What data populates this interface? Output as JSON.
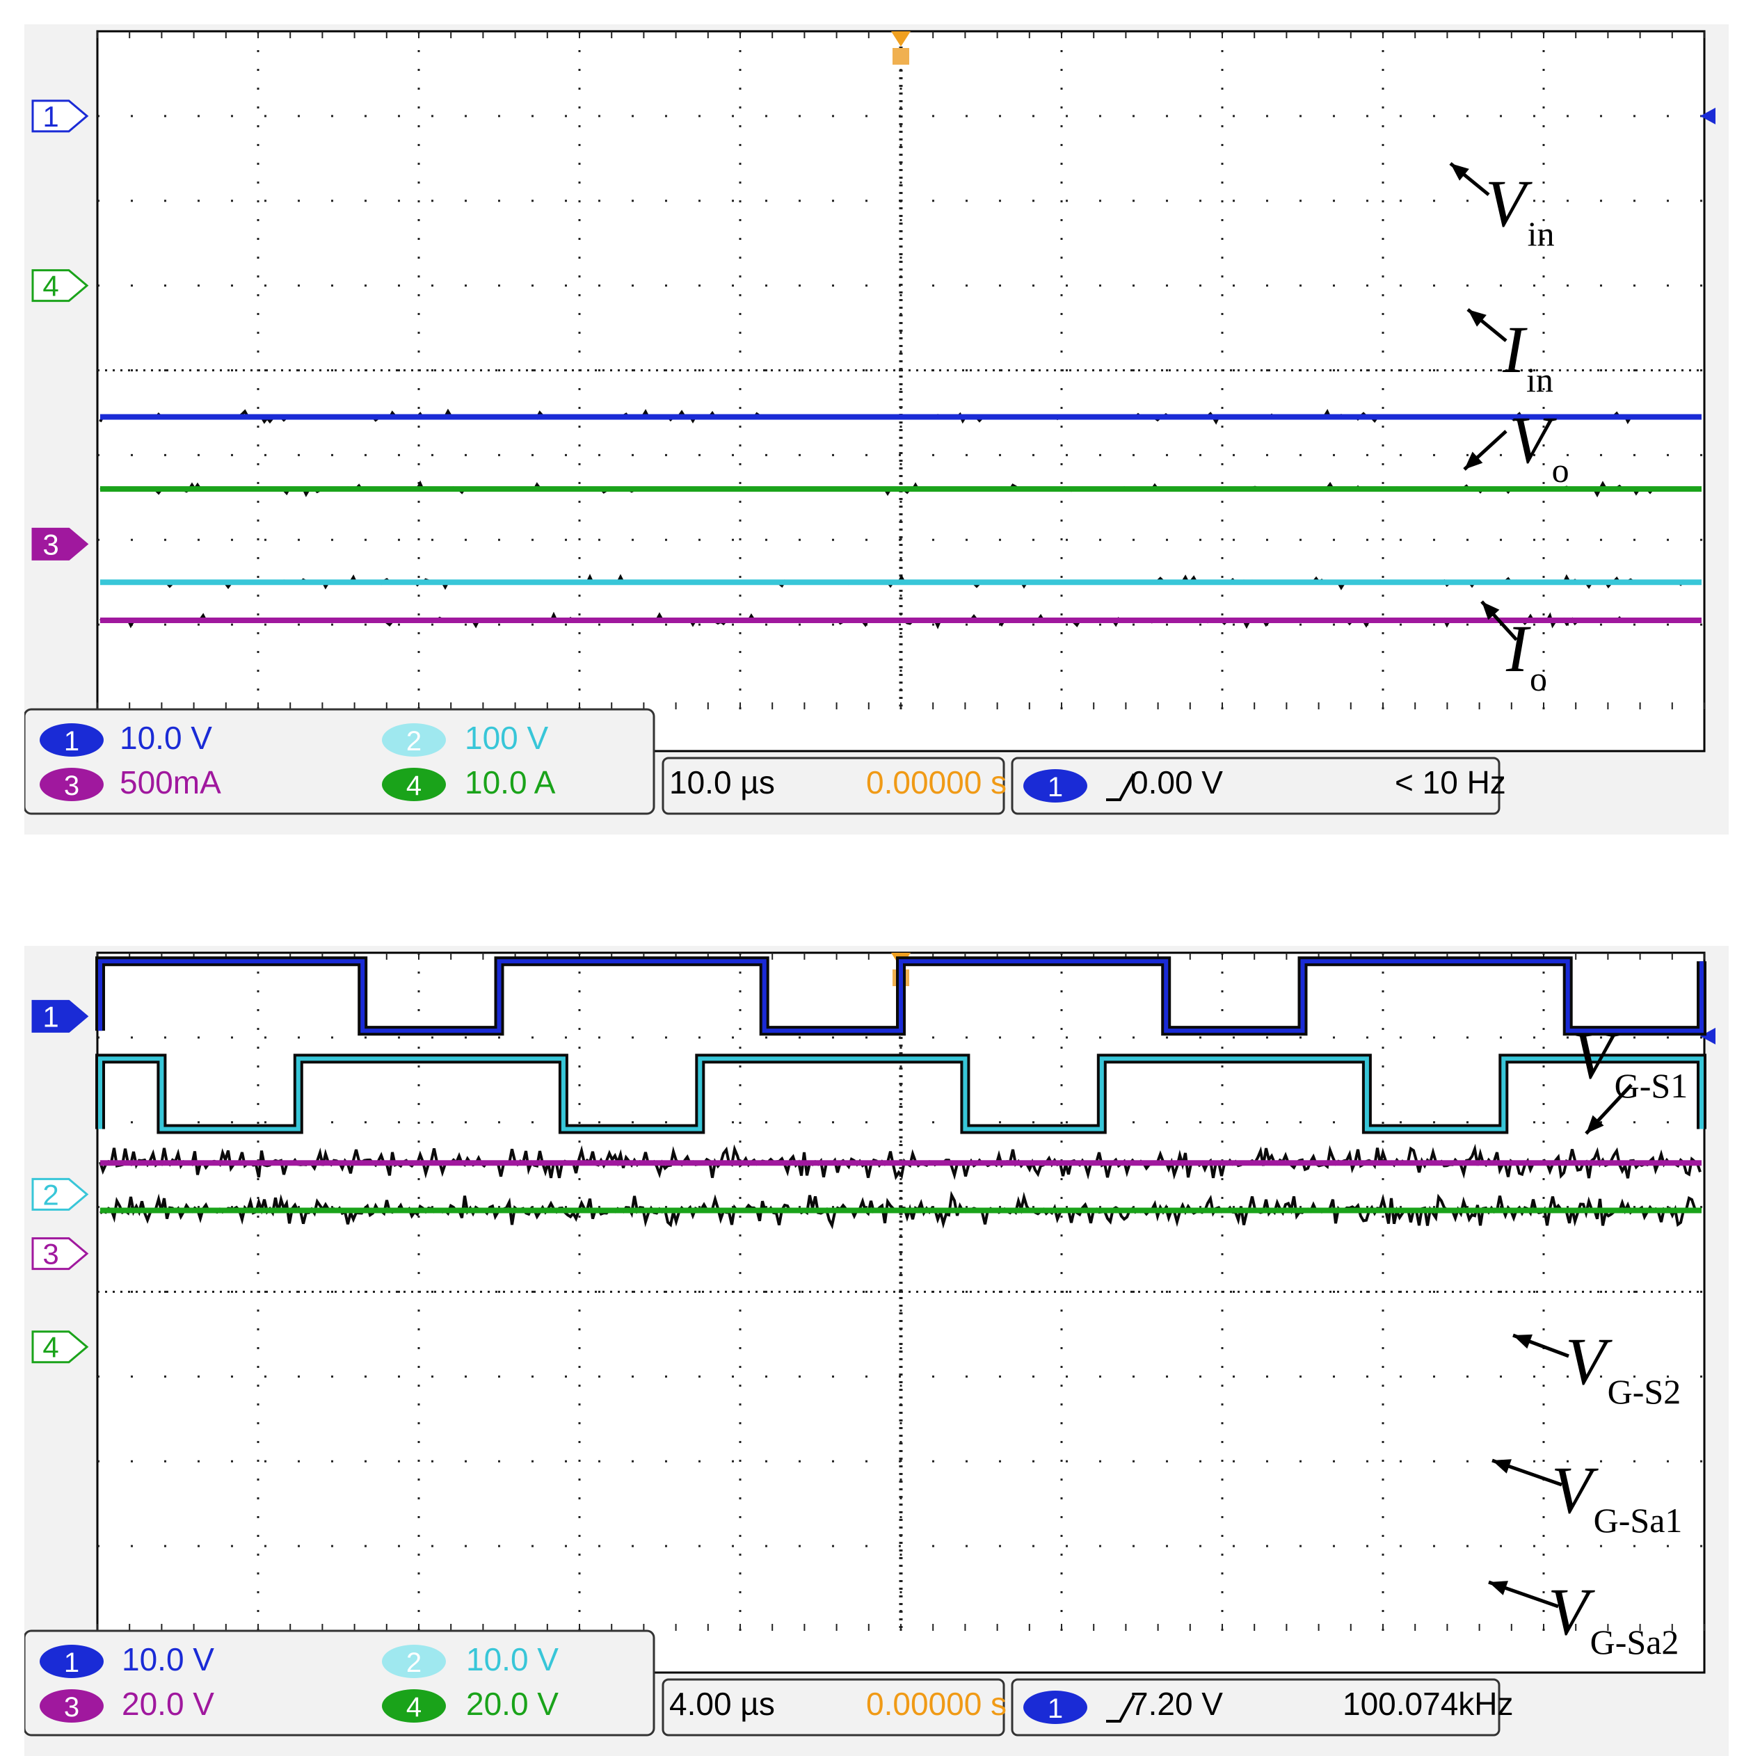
{
  "scopes": [
    {
      "channels": [
        {
          "num": "1",
          "scale": "10.0 V",
          "color": "#1a2bd6"
        },
        {
          "num": "2",
          "scale": "100 V",
          "color": "#38c6d8"
        },
        {
          "num": "3",
          "scale": "500mA",
          "color": "#a0189e"
        },
        {
          "num": "4",
          "scale": "10.0 A",
          "color": "#1aa31a"
        }
      ],
      "timebase": "10.0 µs",
      "trigger_pos": "0.00000 s",
      "trigger_channel": "1",
      "trigger_level": "0.00 V",
      "frequency": "< 10 Hz",
      "markers": [
        "1",
        "4",
        "3"
      ]
    },
    {
      "channels": [
        {
          "num": "1",
          "scale": "10.0 V",
          "color": "#1a2bd6"
        },
        {
          "num": "2",
          "scale": "10.0 V",
          "color": "#38c6d8"
        },
        {
          "num": "3",
          "scale": "20.0 V",
          "color": "#a0189e"
        },
        {
          "num": "4",
          "scale": "20.0 V",
          "color": "#1aa31a"
        }
      ],
      "timebase": "4.00 µs",
      "trigger_pos": "0.00000 s",
      "trigger_channel": "1",
      "trigger_level": "7.20 V",
      "frequency": "100.074kHz",
      "markers": [
        "1",
        "2",
        "3",
        "4"
      ]
    }
  ],
  "annotations": {
    "top": [
      {
        "main": "V",
        "sub": "in"
      },
      {
        "main": "I",
        "sub": "in"
      },
      {
        "main": "V",
        "sub": "o"
      },
      {
        "main": "I",
        "sub": "o"
      }
    ],
    "bottom": [
      {
        "main": "V",
        "sub": "G-S1"
      },
      {
        "main": "V",
        "sub": "G-S2"
      },
      {
        "main": "V",
        "sub": "G-Sa1"
      },
      {
        "main": "V",
        "sub": "G-Sa2"
      }
    ]
  },
  "chart_data": [
    {
      "type": "line",
      "xlabel": "",
      "ylabel": "",
      "grid": true,
      "x_divisions": 10,
      "y_divisions": 8,
      "series": [
        {
          "name": "V",
          "level_div": 3.45,
          "shape": "dc"
        },
        {
          "name": "I",
          "level_div": 2.6,
          "shape": "dc"
        },
        {
          "name": "V",
          "level_div": 1.5,
          "shape": "dc"
        },
        {
          "name": "I",
          "level_div": 1.05,
          "shape": "dc"
        }
      ]
    },
    {
      "type": "line",
      "xlabel": "",
      "ylabel": "",
      "grid": true,
      "x_divisions": 10,
      "y_divisions": 8,
      "series": [
        {
          "name": "V",
          "high_div": 7.9,
          "low_div": 7.08,
          "period_div": 2.5,
          "duty": 0.66,
          "phase_div": 0.0,
          "shape": "pulse"
        },
        {
          "name": "V",
          "high_div": 6.75,
          "low_div": 5.92,
          "period_div": 2.5,
          "duty": 0.66,
          "phase_div": 1.25,
          "shape": "pulse"
        },
        {
          "name": "V",
          "level_div": 5.52,
          "shape": "noise"
        },
        {
          "name": "V",
          "level_div": 4.96,
          "shape": "noise"
        }
      ]
    }
  ]
}
